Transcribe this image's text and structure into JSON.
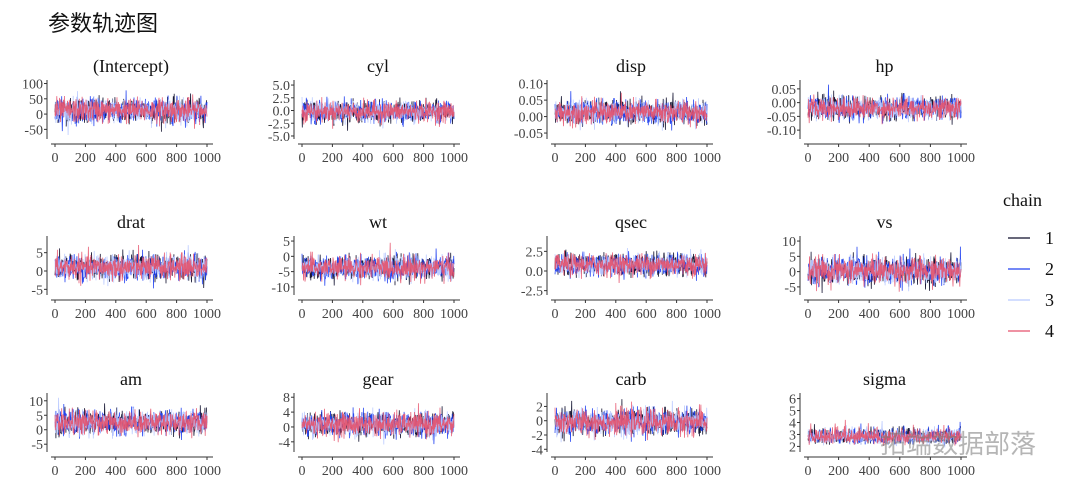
{
  "title": "参数轨迹图",
  "watermark": "拓端数据部落",
  "chart_data": {
    "type": "line",
    "title": "参数轨迹图",
    "xlim": [
      0,
      1000
    ],
    "xticks": [
      0,
      200,
      400,
      600,
      800,
      1000
    ],
    "grid": false,
    "legend": {
      "title": "chain",
      "placement": "right",
      "entries": [
        "1",
        "2",
        "3",
        "4"
      ]
    },
    "series_colors": {
      "1": "#0d0d2b",
      "2": "#2040f0",
      "3": "#b9c9ff",
      "4": "#e5526c"
    },
    "panels": [
      {
        "name": "(Intercept)",
        "yticks": [
          -50,
          0,
          50,
          100
        ],
        "ylim": [
          -75,
          105
        ],
        "mean": 12,
        "sd": 20
      },
      {
        "name": "cyl",
        "yticks": [
          -5.0,
          -2.5,
          0.0,
          2.5,
          5.0
        ],
        "ylim": [
          -5.2,
          5.6
        ],
        "mean": -0.2,
        "sd": 1.0
      },
      {
        "name": "disp",
        "yticks": [
          -0.05,
          0.0,
          0.05,
          0.1
        ],
        "ylim": [
          -0.062,
          0.105
        ],
        "mean": 0.013,
        "sd": 0.018
      },
      {
        "name": "hp",
        "yticks": [
          -0.1,
          -0.05,
          0.0,
          0.05
        ],
        "ylim": [
          -0.125,
          0.075
        ],
        "mean": -0.02,
        "sd": 0.02
      },
      {
        "name": "drat",
        "yticks": [
          -5,
          0,
          5
        ],
        "ylim": [
          -6,
          9
        ],
        "mean": 1,
        "sd": 1.7
      },
      {
        "name": "wt",
        "yticks": [
          -10,
          -5,
          0,
          5
        ],
        "ylim": [
          -12,
          6
        ],
        "mean": -3.7,
        "sd": 1.9
      },
      {
        "name": "qsec",
        "yticks": [
          -2.5,
          0.0,
          2.5
        ],
        "ylim": [
          -2.8,
          4.2
        ],
        "mean": 0.8,
        "sd": 0.7
      },
      {
        "name": "vs",
        "yticks": [
          -5,
          0,
          5,
          10
        ],
        "ylim": [
          -7,
          11
        ],
        "mean": 0.3,
        "sd": 2.2
      },
      {
        "name": "am",
        "yticks": [
          -5,
          0,
          5,
          10
        ],
        "ylim": [
          -7,
          12
        ],
        "mean": 2.5,
        "sd": 2.0
      },
      {
        "name": "gear",
        "yticks": [
          -4,
          0,
          4,
          8
        ],
        "ylim": [
          -6.2,
          8.6
        ],
        "mean": 0.7,
        "sd": 1.6
      },
      {
        "name": "carb",
        "yticks": [
          -4,
          -2,
          0,
          2
        ],
        "ylim": [
          -4.1,
          3.6
        ],
        "mean": -0.2,
        "sd": 0.9
      },
      {
        "name": "sigma",
        "yticks": [
          2,
          3,
          4,
          5,
          6
        ],
        "ylim": [
          1.7,
          6.3
        ],
        "mean": 2.7,
        "sd": 0.4
      }
    ]
  }
}
